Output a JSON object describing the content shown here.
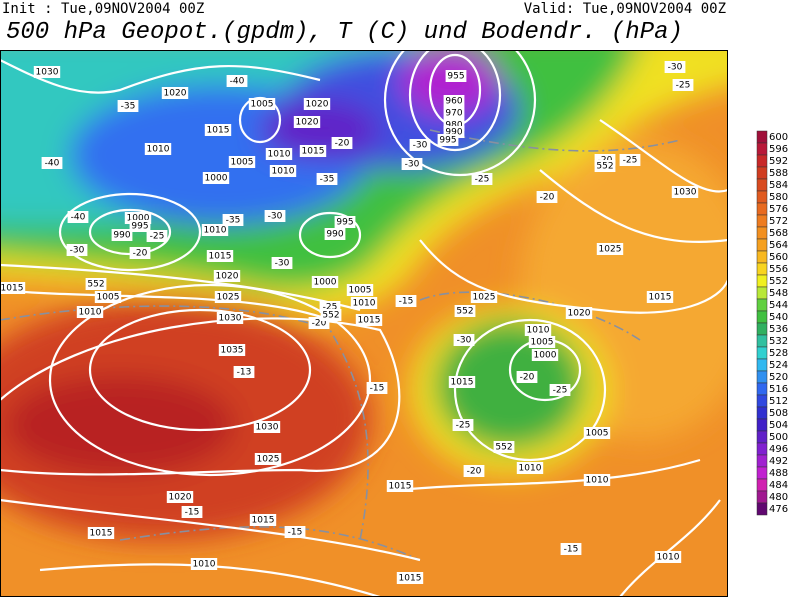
{
  "header": {
    "init": "Init : Tue,09NOV2004 00Z",
    "valid": "Valid: Tue,09NOV2004 00Z",
    "title": "500 hPa Geopot.(gpdm), T (C) und Bodendr. (hPa)"
  },
  "colorbar": {
    "labels": [
      600,
      596,
      592,
      588,
      584,
      580,
      576,
      572,
      568,
      564,
      560,
      556,
      552,
      548,
      544,
      540,
      536,
      532,
      528,
      524,
      520,
      516,
      512,
      508,
      504,
      500,
      496,
      492,
      488,
      484,
      480,
      476
    ],
    "colors": [
      "#a0103a",
      "#b81838",
      "#c82828",
      "#d03c20",
      "#d84a20",
      "#e05a20",
      "#e86a20",
      "#ee7c20",
      "#f29020",
      "#f5a020",
      "#f8b820",
      "#f8d420",
      "#f0f020",
      "#b8e838",
      "#60d040",
      "#40c040",
      "#30b060",
      "#30c0a0",
      "#30d0d0",
      "#30b8f0",
      "#3090f0",
      "#3068f0",
      "#3048e0",
      "#3030d0",
      "#4020c8",
      "#6020c8",
      "#8020d0",
      "#a020d0",
      "#c020d0",
      "#d020b0",
      "#a01890",
      "#600870"
    ]
  },
  "map": {
    "labels": [
      "1030",
      "1020",
      "1005",
      "1020",
      "1015",
      "1020",
      "1010",
      "1005",
      "1010",
      "1015",
      "1000",
      "1010",
      "1000",
      "995",
      "990",
      "1010",
      "1015",
      "995",
      "990",
      "1020",
      "1025",
      "1005",
      "1010",
      "1000",
      "1005",
      "1010",
      "1015",
      "1030",
      "1035",
      "1030",
      "1025",
      "1020",
      "1015",
      "1015",
      "1010",
      "1015",
      "1015",
      "1010",
      "1010",
      "1005",
      "1015",
      "1000",
      "1005",
      "1010",
      "1025",
      "1020",
      "1015",
      "1025",
      "1030",
      "1015",
      "1010",
      "955",
      "960",
      "970",
      "980",
      "990",
      "995",
      "-35",
      "-40",
      "-40",
      "-35",
      "-40",
      "-30",
      "-25",
      "-20",
      "-35",
      "-30",
      "-30",
      "-25",
      "-20",
      "-15",
      "-15",
      "-13",
      "-20",
      "-30",
      "-30",
      "-25",
      "-20",
      "-25",
      "-20",
      "-30",
      "-25",
      "-30",
      "-20",
      "-25",
      "-25",
      "-20",
      "-15",
      "-15",
      "-15",
      "552",
      "552",
      "552",
      "552",
      "552"
    ]
  }
}
